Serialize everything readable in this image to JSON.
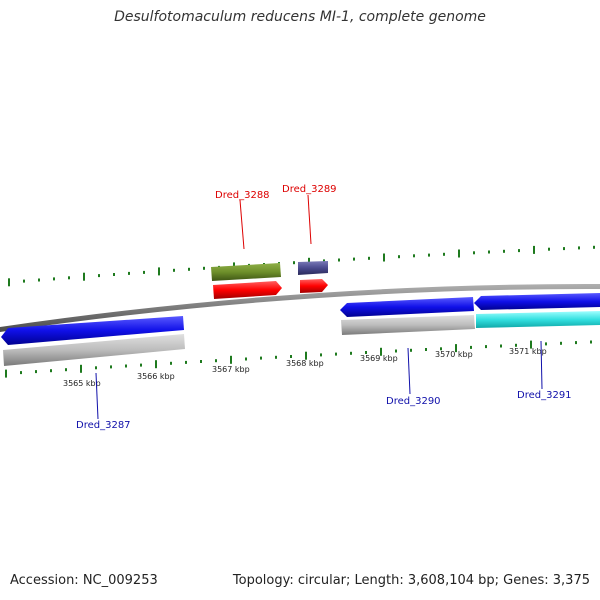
{
  "title": "Desulfotomaculum reducens MI-1, complete genome",
  "footer": {
    "accession": "Accession: NC_009253",
    "summary": "Topology: circular; Length: 3,608,104 bp; Genes: 3,375"
  },
  "colors": {
    "forward_cds": "#2020e0",
    "reverse_cds_pseudo": "#bcbcbc",
    "rna_green": "#6e8f2a",
    "red_feature": "#ff0000",
    "purple_feature": "#4a4a8e",
    "cyan_feature": "#33e0e0",
    "tick_green": "#1e7a1e",
    "label_red": "#dd0000",
    "label_blue": "#1010aa"
  },
  "scale_labels": [
    "3565 kbp",
    "3566 kbp",
    "3567 kbp",
    "3568 kbp",
    "3569 kbp",
    "3570 kbp",
    "3571 kbp"
  ],
  "gene_labels": [
    {
      "name": "Dred_3287",
      "color": "blue"
    },
    {
      "name": "Dred_3288",
      "color": "red"
    },
    {
      "name": "Dred_3289",
      "color": "red"
    },
    {
      "name": "Dred_3290",
      "color": "blue"
    },
    {
      "name": "Dred_3291",
      "color": "blue"
    }
  ]
}
